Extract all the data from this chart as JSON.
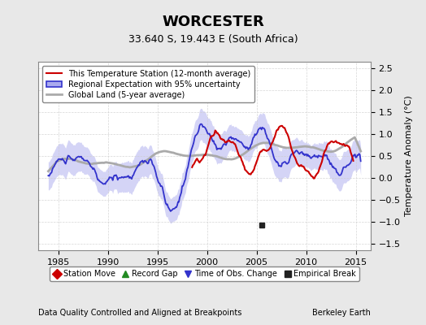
{
  "title": "WORCESTER",
  "subtitle": "33.640 S, 19.443 E (South Africa)",
  "xlabel_left": "Data Quality Controlled and Aligned at Breakpoints",
  "xlabel_right": "Berkeley Earth",
  "ylabel": "Temperature Anomaly (°C)",
  "xlim": [
    1983.0,
    2016.5
  ],
  "ylim": [
    -1.65,
    2.65
  ],
  "yticks": [
    -1.5,
    -1.0,
    -0.5,
    0.0,
    0.5,
    1.0,
    1.5,
    2.0,
    2.5
  ],
  "xticks": [
    1985,
    1990,
    1995,
    2000,
    2005,
    2010,
    2015
  ],
  "bg_color": "#e8e8e8",
  "plot_bg_color": "#ffffff",
  "legend_items": [
    {
      "label": "This Temperature Station (12-month average)",
      "color": "#cc0000",
      "lw": 1.5
    },
    {
      "label": "Regional Expectation with 95% uncertainty",
      "color": "#3333cc",
      "lw": 1.5
    },
    {
      "label": "Global Land (5-year average)",
      "color": "#aaaaaa",
      "lw": 2.0
    }
  ],
  "marker_items": [
    {
      "label": "Station Move",
      "color": "#cc0000",
      "marker": "D"
    },
    {
      "label": "Record Gap",
      "color": "#228B22",
      "marker": "^"
    },
    {
      "label": "Time of Obs. Change",
      "color": "#3333cc",
      "marker": "v"
    },
    {
      "label": "Empirical Break",
      "color": "#222222",
      "marker": "s"
    }
  ],
  "empirical_break_x": 2005.5,
  "empirical_break_y": -1.08
}
